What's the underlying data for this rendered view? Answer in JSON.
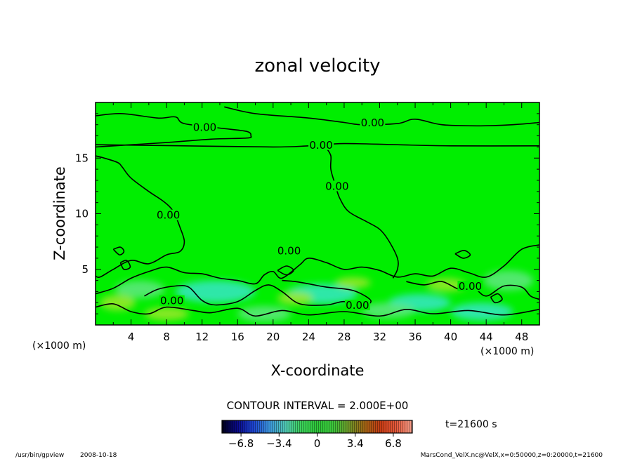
{
  "chart_data": {
    "type": "contour",
    "title": "zonal velocity",
    "xlabel": "X-coordinate",
    "ylabel": "Z-coordinate",
    "x_unit": "(×1000 m)",
    "y_unit": "(×1000 m)",
    "xlim": [
      0,
      50
    ],
    "ylim": [
      0,
      20
    ],
    "xticks": [
      4,
      8,
      12,
      16,
      20,
      24,
      28,
      32,
      36,
      40,
      44,
      48
    ],
    "yticks": [
      5,
      10,
      15
    ],
    "contour_interval_text": "CONTOUR INTERVAL = 2.000E+00",
    "contour_label": "0.00",
    "time_text": "t=21600 s",
    "colorbar": {
      "min": -8.5,
      "max": 8.5,
      "ticks": [
        -6.8,
        -3.4,
        0,
        3.4,
        6.8
      ],
      "tick_labels": [
        "−6.8",
        "−3.4",
        "0",
        "3.4",
        "6.8"
      ],
      "colors": [
        "#00001a",
        "#0a0a8c",
        "#1e46d2",
        "#3c96dc",
        "#50c8b4",
        "#3cd25a",
        "#2ec83a",
        "#3cc83c",
        "#6e9628",
        "#a06414",
        "#c83c14",
        "#e65a3c",
        "#f5a08c"
      ]
    },
    "field_colors": {
      "background": "#00ee00",
      "light": "#5fe880",
      "cyan": "#36e6c6",
      "yellowish": "#9ee82a"
    },
    "contour_lines": [
      {
        "label": "0.00",
        "points": [
          [
            0,
            18.8
          ],
          [
            3,
            19.0
          ],
          [
            7,
            18.6
          ],
          [
            9,
            18.7
          ],
          [
            10,
            18.1
          ],
          [
            14,
            17.7
          ],
          [
            17,
            17.4
          ],
          [
            17.5,
            17.0
          ],
          [
            17,
            16.8
          ],
          [
            13,
            16.7
          ],
          [
            8,
            16.4
          ],
          [
            4,
            16.2
          ],
          [
            0,
            16.0
          ]
        ]
      },
      {
        "label": "0.00",
        "points": [
          [
            14.5,
            19.6
          ],
          [
            18,
            19.0
          ],
          [
            24,
            18.6
          ],
          [
            28,
            18.2
          ],
          [
            30,
            18.0
          ],
          [
            34,
            18.1
          ],
          [
            36,
            18.5
          ],
          [
            39,
            18.0
          ],
          [
            43,
            17.9
          ],
          [
            47,
            18.0
          ],
          [
            50,
            18.2
          ]
        ]
      },
      {
        "label": "0.00",
        "points": [
          [
            0,
            16.2
          ],
          [
            10,
            16.1
          ],
          [
            20,
            16.0
          ],
          [
            24,
            16.1
          ],
          [
            28,
            16.3
          ],
          [
            34,
            16.2
          ],
          [
            40,
            16.1
          ],
          [
            50,
            16.1
          ]
        ]
      },
      {
        "label": "0.00",
        "points": [
          [
            0,
            15.2
          ],
          [
            1,
            15.0
          ],
          [
            2.5,
            14.6
          ],
          [
            3,
            14.2
          ],
          [
            4,
            13.2
          ],
          [
            6,
            12.0
          ],
          [
            7.5,
            11.2
          ],
          [
            8.5,
            10.5
          ],
          [
            9,
            9.8
          ],
          [
            9.5,
            8.8
          ],
          [
            10,
            7.5
          ],
          [
            9.5,
            6.6
          ],
          [
            8,
            6.3
          ],
          [
            6,
            5.5
          ],
          [
            4,
            5.8
          ],
          [
            2,
            5.0
          ],
          [
            0.5,
            4.3
          ],
          [
            0,
            4.4
          ]
        ]
      },
      {
        "label": "0.00",
        "points": [
          [
            26,
            15.9
          ],
          [
            26.5,
            15.2
          ],
          [
            26.5,
            14.0
          ],
          [
            27,
            12.6
          ],
          [
            27.5,
            11.4
          ],
          [
            28.5,
            10.2
          ],
          [
            30.5,
            9.3
          ],
          [
            32,
            8.6
          ],
          [
            33,
            7.6
          ],
          [
            34,
            6.0
          ],
          [
            34,
            5.0
          ],
          [
            33.5,
            4.2
          ]
        ]
      },
      {
        "label": "0.00",
        "points": [
          [
            0,
            2.8
          ],
          [
            2,
            3.3
          ],
          [
            4,
            4.2
          ],
          [
            6,
            4.8
          ],
          [
            8,
            5.2
          ],
          [
            10,
            4.7
          ],
          [
            12,
            4.6
          ],
          [
            14,
            4.2
          ],
          [
            16,
            4.0
          ],
          [
            18,
            3.7
          ],
          [
            19,
            4.5
          ],
          [
            20,
            4.8
          ],
          [
            21,
            4.2
          ],
          [
            23,
            5.4
          ],
          [
            24,
            6.0
          ],
          [
            26,
            5.6
          ],
          [
            28,
            5.0
          ],
          [
            30,
            5.2
          ],
          [
            32,
            4.9
          ],
          [
            34,
            4.3
          ],
          [
            36,
            4.6
          ],
          [
            38,
            4.4
          ],
          [
            40,
            5.1
          ],
          [
            42,
            4.7
          ],
          [
            44,
            4.3
          ],
          [
            46,
            5.3
          ],
          [
            48,
            6.8
          ],
          [
            50,
            7.2
          ]
        ]
      },
      {
        "label": "0.00",
        "points": [
          [
            5.5,
            2.6
          ],
          [
            7,
            3.2
          ],
          [
            9,
            3.5
          ],
          [
            10.5,
            3.4
          ],
          [
            12,
            2.2
          ],
          [
            13.5,
            1.8
          ],
          [
            16,
            2.1
          ],
          [
            18,
            3.1
          ],
          [
            19.5,
            3.6
          ],
          [
            21,
            3.0
          ],
          [
            23,
            1.9
          ],
          [
            26,
            1.8
          ],
          [
            28,
            2.1
          ],
          [
            30,
            1.7
          ],
          [
            31,
            2.2
          ],
          [
            29,
            3.1
          ],
          [
            26,
            3.4
          ],
          [
            24,
            3.7
          ],
          [
            22.5,
            3.9
          ],
          [
            21,
            4.0
          ]
        ]
      },
      {
        "label": "",
        "points": [
          [
            35,
            3.9
          ],
          [
            37,
            3.6
          ],
          [
            39,
            3.9
          ],
          [
            41,
            3.2
          ],
          [
            42.5,
            3.4
          ],
          [
            44,
            2.6
          ],
          [
            46,
            3.5
          ],
          [
            48,
            3.4
          ],
          [
            49,
            2.6
          ],
          [
            50,
            2.3
          ]
        ]
      },
      {
        "label": "",
        "points": [
          [
            0,
            1.6
          ],
          [
            2,
            1.9
          ],
          [
            4,
            1.2
          ],
          [
            6,
            1.0
          ],
          [
            8,
            1.6
          ],
          [
            11,
            1.3
          ],
          [
            13,
            1.1
          ],
          [
            16,
            1.5
          ],
          [
            18,
            0.8
          ],
          [
            21,
            1.3
          ],
          [
            24,
            0.9
          ],
          [
            28,
            1.2
          ],
          [
            32,
            0.8
          ],
          [
            35,
            1.4
          ],
          [
            38,
            1.0
          ],
          [
            42,
            1.3
          ],
          [
            46,
            0.9
          ],
          [
            50,
            1.4
          ]
        ]
      },
      {
        "label": "",
        "points": [
          [
            2,
            6.8
          ],
          [
            2.8,
            7.0
          ],
          [
            3.2,
            6.6
          ],
          [
            2.7,
            6.3
          ],
          [
            2,
            6.8
          ]
        ]
      },
      {
        "label": "",
        "points": [
          [
            2.8,
            5.6
          ],
          [
            3.5,
            5.8
          ],
          [
            3.9,
            5.2
          ],
          [
            3.2,
            5.0
          ],
          [
            2.8,
            5.6
          ]
        ]
      },
      {
        "label": "",
        "points": [
          [
            20.5,
            4.9
          ],
          [
            21.5,
            5.3
          ],
          [
            22.3,
            4.9
          ],
          [
            21.5,
            4.5
          ],
          [
            20.5,
            4.9
          ]
        ]
      },
      {
        "label": "",
        "points": [
          [
            40.5,
            6.4
          ],
          [
            41.5,
            6.7
          ],
          [
            42.2,
            6.3
          ],
          [
            41.4,
            6.0
          ],
          [
            40.5,
            6.4
          ]
        ]
      },
      {
        "label": "",
        "points": [
          [
            44.5,
            2.5
          ],
          [
            45.3,
            2.8
          ],
          [
            45.8,
            2.3
          ],
          [
            45.0,
            2.0
          ],
          [
            44.5,
            2.5
          ]
        ]
      }
    ],
    "contour_label_positions": [
      [
        12.3,
        17.7
      ],
      [
        31.2,
        18.1
      ],
      [
        25.4,
        16.1
      ],
      [
        8.2,
        9.8
      ],
      [
        27.2,
        12.4
      ],
      [
        21.8,
        6.6
      ],
      [
        8.6,
        2.1
      ],
      [
        29.5,
        1.7
      ],
      [
        42.2,
        3.4
      ]
    ],
    "anomaly_patches": [
      {
        "x": 13.5,
        "y": 3.0,
        "rx": 4.5,
        "ry": 1.0,
        "tone": "cyan"
      },
      {
        "x": 25.5,
        "y": 2.8,
        "rx": 4.0,
        "ry": 0.9,
        "tone": "cyan"
      },
      {
        "x": 36.5,
        "y": 2.0,
        "rx": 3.5,
        "ry": 0.8,
        "tone": "cyan"
      },
      {
        "x": 43.5,
        "y": 1.2,
        "rx": 3.5,
        "ry": 0.8,
        "tone": "cyan"
      },
      {
        "x": 5.0,
        "y": 3.2,
        "rx": 2.8,
        "ry": 0.8,
        "tone": "light"
      },
      {
        "x": 19.0,
        "y": 1.0,
        "rx": 3.0,
        "ry": 0.7,
        "tone": "light"
      },
      {
        "x": 33.0,
        "y": 1.3,
        "rx": 3.0,
        "ry": 0.7,
        "tone": "light"
      },
      {
        "x": 46.5,
        "y": 4.0,
        "rx": 2.8,
        "ry": 0.9,
        "tone": "light"
      },
      {
        "x": 8.0,
        "y": 1.0,
        "rx": 2.5,
        "ry": 0.6,
        "tone": "yellowish"
      },
      {
        "x": 29.0,
        "y": 3.8,
        "rx": 2.0,
        "ry": 0.5,
        "tone": "yellowish"
      },
      {
        "x": 39.5,
        "y": 3.6,
        "rx": 2.2,
        "ry": 0.6,
        "tone": "yellowish"
      },
      {
        "x": 22.5,
        "y": 2.4,
        "rx": 2.0,
        "ry": 0.6,
        "tone": "yellowish"
      },
      {
        "x": 2.5,
        "y": 2.0,
        "rx": 2.0,
        "ry": 0.7,
        "tone": "yellowish"
      }
    ]
  },
  "footer": {
    "program": "/usr/bin/gpview",
    "date": "2008-10-18",
    "source": "MarsCond_VelX.nc@VelX,x=0:50000,z=0:20000,t=21600"
  }
}
